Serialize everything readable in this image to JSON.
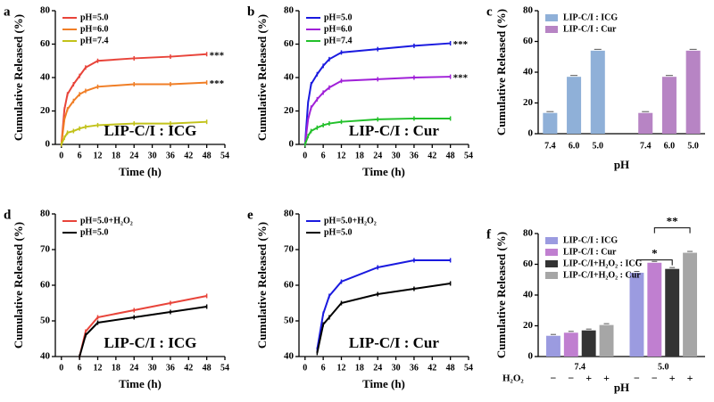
{
  "chart_data": [
    {
      "type": "line",
      "panel": "a",
      "title": "LIP-C/I : ICG",
      "xlabel": "Time (h)",
      "ylabel": "Cumulative Released (%)",
      "x": [
        0,
        1,
        2,
        4,
        6,
        8,
        12,
        24,
        36,
        48
      ],
      "series": [
        {
          "name": "pH=5.0",
          "color": "#e8443a",
          "values": [
            0,
            21,
            30,
            36,
            41,
            46,
            50,
            51.5,
            52.5,
            54
          ]
        },
        {
          "name": "pH=6.0",
          "color": "#f07e26",
          "values": [
            0,
            15,
            21,
            26,
            30,
            32,
            34.5,
            36,
            36,
            37
          ]
        },
        {
          "name": "pH=7.4",
          "color": "#c2c21a",
          "values": [
            0,
            4,
            7,
            8,
            9.5,
            10.5,
            11.5,
            12.5,
            12.5,
            13.5
          ]
        }
      ],
      "annotations": [
        "***",
        "***"
      ],
      "xlim": [
        -2,
        54
      ],
      "xticks": [
        0,
        6,
        12,
        18,
        24,
        30,
        36,
        42,
        48,
        54
      ],
      "ylim": [
        0,
        80
      ],
      "yticks": [
        0,
        20,
        40,
        60,
        80
      ],
      "legend": "upper left"
    },
    {
      "type": "line",
      "panel": "b",
      "title": "LIP-C/I : Cur",
      "xlabel": "Time (h)",
      "ylabel": "Cumulative Released (%)",
      "x": [
        0,
        1,
        2,
        4,
        6,
        8,
        12,
        24,
        36,
        48
      ],
      "series": [
        {
          "name": "pH=5.0",
          "color": "#1a1adf",
          "values": [
            0,
            25,
            36,
            42,
            47,
            51,
            55,
            57,
            59,
            60.5
          ]
        },
        {
          "name": "pH=6.0",
          "color": "#a020d8",
          "values": [
            0,
            15,
            22,
            27,
            31,
            34,
            38,
            39,
            40,
            40.5
          ]
        },
        {
          "name": "pH=7.4",
          "color": "#22c02a",
          "values": [
            0,
            5,
            8,
            10,
            11.5,
            12.5,
            13.5,
            15,
            15.5,
            15.5
          ]
        }
      ],
      "annotations": [
        "***",
        "***"
      ],
      "xlim": [
        -2,
        54
      ],
      "xticks": [
        0,
        6,
        12,
        18,
        24,
        30,
        36,
        42,
        48,
        54
      ],
      "ylim": [
        0,
        80
      ],
      "yticks": [
        0,
        20,
        40,
        60,
        80
      ],
      "legend": "upper left"
    },
    {
      "type": "bar",
      "panel": "c",
      "xlabel": "pH",
      "ylabel": "Cumulative Released (%)",
      "categories": [
        "7.4",
        "6.0",
        "5.0",
        "7.4",
        "6.0",
        "5.0"
      ],
      "series": [
        {
          "name": "LIP-C/I : ICG",
          "color": "#8fb0d8",
          "values": [
            13.5,
            37,
            54,
            null,
            null,
            null
          ]
        },
        {
          "name": "LIP-C/I : Cur",
          "color": "#b784c4",
          "values": [
            null,
            null,
            null,
            13.5,
            37,
            54
          ]
        }
      ],
      "ylim": [
        0,
        80
      ],
      "yticks": [
        0,
        20,
        40,
        60,
        80
      ],
      "legend": "upper left"
    },
    {
      "type": "line",
      "panel": "d",
      "title": "LIP-C/I : ICG",
      "xlabel": "Time (h)",
      "ylabel": "Cumulative Released (%)",
      "x": [
        6,
        8,
        12,
        24,
        36,
        48
      ],
      "series": [
        {
          "name": "pH=5.0+H₂O₂",
          "color": "#e8443a",
          "values": [
            40,
            47,
            51,
            53,
            55,
            57
          ]
        },
        {
          "name": "pH=5.0",
          "color": "#000000",
          "values": [
            40,
            46,
            49.5,
            51,
            52.5,
            54
          ]
        }
      ],
      "xlim": [
        -2,
        54
      ],
      "xticks": [
        0,
        6,
        12,
        18,
        24,
        30,
        36,
        42,
        48,
        54
      ],
      "ylim": [
        40,
        80
      ],
      "yticks": [
        40,
        50,
        60,
        70,
        80
      ],
      "legend": "upper left"
    },
    {
      "type": "line",
      "panel": "e",
      "title": "LIP-C/I : Cur",
      "xlabel": "Time (h)",
      "ylabel": "Cumulative Released (%)",
      "x": [
        4,
        6,
        8,
        12,
        24,
        36,
        48
      ],
      "series": [
        {
          "name": "pH=5.0+H₂O₂",
          "color": "#1a1adf",
          "values": [
            42,
            52,
            57,
            61,
            65,
            67,
            67
          ]
        },
        {
          "name": "pH=5.0",
          "color": "#000000",
          "values": [
            41,
            49,
            51,
            55,
            57.5,
            59,
            60.5
          ]
        }
      ],
      "xlim": [
        -2,
        54
      ],
      "xticks": [
        0,
        6,
        12,
        18,
        24,
        30,
        36,
        42,
        48,
        54
      ],
      "ylim": [
        40,
        80
      ],
      "yticks": [
        40,
        50,
        60,
        70,
        80
      ],
      "legend": "upper left"
    },
    {
      "type": "groupbar",
      "panel": "f",
      "xlabel": "pH",
      "ylabel": "Cumulative Released (%)",
      "categories": [
        "7.4",
        "5.0"
      ],
      "series": [
        {
          "name": "LIP-C/I : ICG",
          "color": "#9b9be0",
          "values": [
            13.5,
            54.5
          ]
        },
        {
          "name": "LIP-C/I : Cur",
          "color": "#c07fd0",
          "values": [
            15.5,
            61
          ]
        },
        {
          "name": "LIP-C/I+H₂O₂ : ICG",
          "color": "#333333",
          "values": [
            17,
            57
          ]
        },
        {
          "name": "LIP-C/I+H₂O₂ : Cur",
          "color": "#a6a6a6",
          "values": [
            20.5,
            67.5
          ]
        }
      ],
      "annotations": [
        "*",
        "**"
      ],
      "h2o2_row": {
        "label": "H₂O₂",
        "signs": [
          "−",
          "−",
          "+",
          "+"
        ]
      },
      "ylim": [
        0,
        80
      ],
      "yticks": [
        0,
        20,
        40,
        60,
        80
      ],
      "legend": "upper left"
    }
  ]
}
